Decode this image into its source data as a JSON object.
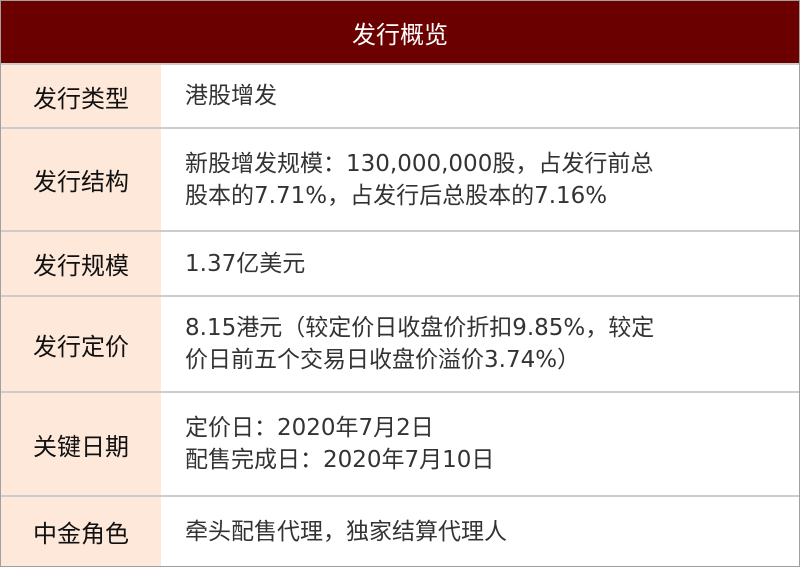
{
  "title": "发行概览",
  "colors": {
    "header_bg": "#6b0000",
    "label_bg": "#fde8d9"
  },
  "rows": [
    {
      "label": "发行类型",
      "lines": [
        "港股增发"
      ]
    },
    {
      "label": "发行结构",
      "lines": [
        "新股增发规模：130,000,000股，占发行前总",
        "股本的7.71%，占发行后总股本的7.16%"
      ]
    },
    {
      "label": "发行规模",
      "lines": [
        "1.37亿美元"
      ]
    },
    {
      "label": "发行定价",
      "lines": [
        "8.15港元（较定价日收盘价折扣9.85%，较定",
        "价日前五个交易日收盘价溢价3.74%）"
      ]
    },
    {
      "label": "关键日期",
      "lines": [
        "定价日：2020年7月2日",
        "配售完成日：2020年7月10日"
      ]
    },
    {
      "label": "中金角色",
      "lines": [
        "牵头配售代理，独家结算代理人"
      ]
    }
  ]
}
